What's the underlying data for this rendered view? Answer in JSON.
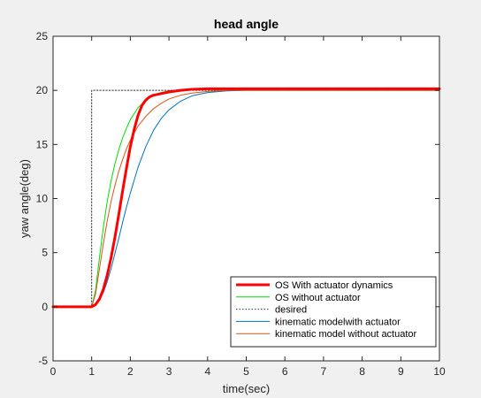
{
  "chart_data": {
    "type": "line",
    "title": "head angle",
    "xlabel": "time(sec)",
    "ylabel": "yaw angle(deg)",
    "xlim": [
      0,
      10
    ],
    "ylim": [
      -5,
      25
    ],
    "xticks": [
      0,
      1,
      2,
      3,
      4,
      5,
      6,
      7,
      8,
      9,
      10
    ],
    "yticks": [
      -5,
      0,
      5,
      10,
      15,
      20,
      25
    ],
    "grid": false,
    "legend_position": "bottom-right",
    "series": [
      {
        "name": "OS With actuator dynamics",
        "color": "#ff0000",
        "style": "solid-thick",
        "x": [
          0,
          1,
          1.1,
          1.2,
          1.3,
          1.4,
          1.5,
          1.6,
          1.7,
          1.8,
          1.9,
          2.0,
          2.1,
          2.2,
          2.3,
          2.4,
          2.5,
          2.6,
          2.8,
          3.0,
          3.3,
          3.6,
          4.0,
          5.0,
          10
        ],
        "y": [
          0,
          0,
          0.2,
          0.7,
          1.6,
          2.9,
          4.5,
          6.4,
          8.5,
          10.7,
          12.8,
          14.8,
          16.4,
          17.7,
          18.6,
          19.1,
          19.4,
          19.55,
          19.7,
          19.85,
          20.0,
          20.1,
          20.15,
          20.15,
          20.15
        ]
      },
      {
        "name": "OS without actuator",
        "color": "#00dd00",
        "style": "solid",
        "x": [
          0,
          1,
          1.1,
          1.2,
          1.3,
          1.4,
          1.5,
          1.6,
          1.7,
          1.8,
          1.9,
          2.0,
          2.2,
          2.4,
          2.6,
          2.8,
          3.0,
          3.3,
          3.6,
          4.0,
          5.0,
          10
        ],
        "y": [
          0,
          0,
          1.5,
          4.5,
          7.3,
          9.7,
          11.6,
          13.2,
          14.5,
          15.6,
          16.5,
          17.3,
          18.4,
          19.1,
          19.5,
          19.8,
          19.95,
          20.05,
          20.1,
          20.1,
          20.1,
          20.1
        ]
      },
      {
        "name": "desired",
        "color": "#333333",
        "style": "dotted",
        "x": [
          0,
          1,
          1,
          10
        ],
        "y": [
          0,
          0,
          20,
          20
        ]
      },
      {
        "name": "kinematic modelwith actuator",
        "color": "#0072bd",
        "style": "solid",
        "x": [
          0,
          1,
          1.1,
          1.2,
          1.3,
          1.4,
          1.5,
          1.6,
          1.7,
          1.8,
          1.9,
          2.0,
          2.2,
          2.4,
          2.6,
          2.8,
          3.0,
          3.3,
          3.6,
          4.0,
          4.5,
          5.0,
          6.0,
          10
        ],
        "y": [
          0,
          0,
          0.15,
          0.6,
          1.3,
          2.3,
          3.5,
          4.9,
          6.3,
          7.8,
          9.2,
          10.5,
          12.9,
          14.8,
          16.3,
          17.4,
          18.2,
          19.0,
          19.5,
          19.8,
          19.95,
          20.0,
          20.0,
          20.0
        ]
      },
      {
        "name": "kinematic model without actuator",
        "color": "#d95319",
        "style": "solid",
        "x": [
          0,
          1,
          1.1,
          1.2,
          1.3,
          1.4,
          1.5,
          1.6,
          1.7,
          1.8,
          1.9,
          2.0,
          2.2,
          2.4,
          2.6,
          2.8,
          3.0,
          3.3,
          3.6,
          4.0,
          4.5,
          5.0,
          10
        ],
        "y": [
          0,
          0,
          1.2,
          3.5,
          5.8,
          7.9,
          9.7,
          11.2,
          12.5,
          13.6,
          14.6,
          15.4,
          16.7,
          17.6,
          18.3,
          18.8,
          19.2,
          19.55,
          19.75,
          19.9,
          20.0,
          20.0,
          20.0
        ]
      }
    ]
  }
}
